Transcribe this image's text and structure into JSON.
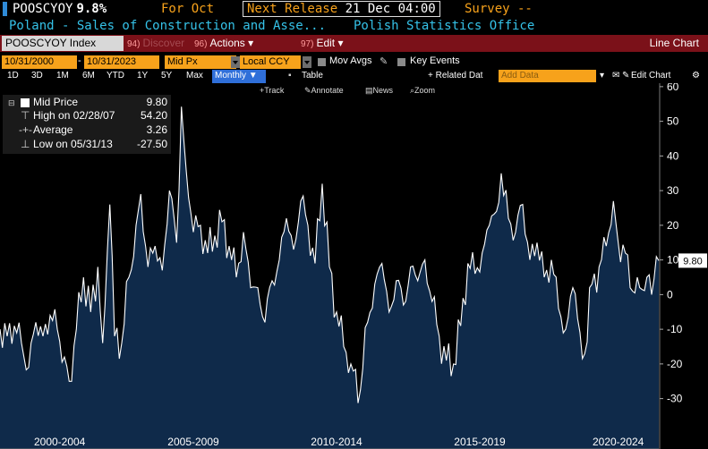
{
  "header": {
    "ticker": "POOSCYOY",
    "last_value": "9.8%",
    "for_label": "For Oct",
    "next_release_label": "Next Release",
    "next_release_date": "21 Dec 04:00",
    "survey_label": "Survey --",
    "description": "Poland - Sales of Construction and Asse...",
    "source": "Polish Statistics Office"
  },
  "toolbar": {
    "index_label": "POOSCYOY Index",
    "discover_num": "94)",
    "discover_label": "Discover",
    "actions_num": "96)",
    "actions_label": "Actions",
    "edit_num": "97)",
    "edit_label": "Edit",
    "chart_type_label": "Line Chart",
    "start_date": "10/31/2000",
    "end_date": "10/31/2023",
    "price_field": "Mid Px",
    "currency": "Local CCY",
    "mov_avgs_label": "Mov Avgs",
    "key_events_label": "Key Events",
    "ranges": [
      "1D",
      "3D",
      "1M",
      "6M",
      "YTD",
      "1Y",
      "5Y",
      "Max"
    ],
    "periodicity": "Monthly",
    "table_label": "Table",
    "related_data_label": "+ Related Dat",
    "add_data_placeholder": "Add Data",
    "edit_chart_label": "Edit Chart",
    "tools": [
      "Track",
      "Annotate",
      "News",
      "Zoom"
    ]
  },
  "legend": {
    "items": [
      {
        "name": "Mid Price",
        "value": "9.80"
      },
      {
        "name": "High on 02/28/07",
        "value": "54.20"
      },
      {
        "name": "Average",
        "value": "3.26"
      },
      {
        "name": "Low on 05/31/13",
        "value": "-27.50"
      }
    ]
  },
  "colors": {
    "accent_orange": "#f7a21b",
    "title_blue": "#35c2e8",
    "toolbar_red": "#7b1119",
    "area_fill": "#0f2a4a",
    "line": "#ffffff"
  },
  "chart_data": {
    "type": "area",
    "series": [
      {
        "name": "Mid Price"
      }
    ],
    "x_start": "2000-10",
    "x_end": "2023-10",
    "x_tick_labels": [
      "2000-2004",
      "2005-2009",
      "2010-2014",
      "2015-2019",
      "2020-2024"
    ],
    "y_ticks": [
      -30,
      -20,
      -10,
      0,
      10,
      20,
      30,
      40,
      50,
      60
    ],
    "ylim": [
      -35,
      61
    ],
    "last_value_label": "9.80",
    "grid": false,
    "y_axis_position": "right",
    "anchors": [
      [
        "2000-10",
        -10
      ],
      [
        "2001-01",
        -12
      ],
      [
        "2001-04",
        -9
      ],
      [
        "2001-07",
        -14
      ],
      [
        "2001-10",
        -21
      ],
      [
        "2002-01",
        -8
      ],
      [
        "2002-04",
        -12
      ],
      [
        "2002-07",
        -6
      ],
      [
        "2002-10",
        -10
      ],
      [
        "2003-01",
        -18
      ],
      [
        "2003-03",
        -25
      ],
      [
        "2003-06",
        -10
      ],
      [
        "2003-09",
        5
      ],
      [
        "2003-12",
        -5
      ],
      [
        "2004-03",
        8
      ],
      [
        "2004-05",
        -14
      ],
      [
        "2004-08",
        26
      ],
      [
        "2004-10",
        -12
      ],
      [
        "2005-01",
        -14
      ],
      [
        "2005-04",
        5
      ],
      [
        "2005-06",
        11
      ],
      [
        "2005-09",
        29
      ],
      [
        "2005-12",
        8
      ],
      [
        "2006-03",
        14
      ],
      [
        "2006-06",
        7
      ],
      [
        "2006-09",
        30
      ],
      [
        "2006-12",
        15
      ],
      [
        "2007-02",
        54.2
      ],
      [
        "2007-04",
        36
      ],
      [
        "2007-07",
        18
      ],
      [
        "2007-10",
        20
      ],
      [
        "2008-01",
        12
      ],
      [
        "2008-04",
        17
      ],
      [
        "2008-07",
        21
      ],
      [
        "2008-10",
        14
      ],
      [
        "2009-01",
        5
      ],
      [
        "2009-04",
        18
      ],
      [
        "2009-07",
        2
      ],
      [
        "2009-10",
        2
      ],
      [
        "2010-01",
        -8
      ],
      [
        "2010-04",
        4
      ],
      [
        "2010-07",
        10
      ],
      [
        "2010-10",
        22
      ],
      [
        "2011-01",
        13
      ],
      [
        "2011-04",
        27
      ],
      [
        "2011-07",
        20
      ],
      [
        "2011-10",
        9
      ],
      [
        "2012-01",
        32
      ],
      [
        "2012-04",
        8
      ],
      [
        "2012-07",
        -5
      ],
      [
        "2012-10",
        -15
      ],
      [
        "2013-01",
        -20
      ],
      [
        "2013-05",
        -27.5
      ],
      [
        "2013-08",
        -8
      ],
      [
        "2013-11",
        3
      ],
      [
        "2014-02",
        9
      ],
      [
        "2014-05",
        -5
      ],
      [
        "2014-08",
        4
      ],
      [
        "2014-11",
        -3
      ],
      [
        "2015-02",
        8
      ],
      [
        "2015-05",
        4
      ],
      [
        "2015-08",
        10
      ],
      [
        "2015-11",
        -2
      ],
      [
        "2016-02",
        -12
      ],
      [
        "2016-05",
        -19
      ],
      [
        "2016-08",
        -20
      ],
      [
        "2016-11",
        -9
      ],
      [
        "2017-02",
        9
      ],
      [
        "2017-05",
        6
      ],
      [
        "2017-08",
        12
      ],
      [
        "2017-11",
        20
      ],
      [
        "2018-02",
        24
      ],
      [
        "2018-04",
        35
      ],
      [
        "2018-07",
        22
      ],
      [
        "2018-10",
        18
      ],
      [
        "2019-01",
        26
      ],
      [
        "2019-04",
        10
      ],
      [
        "2019-07",
        15
      ],
      [
        "2019-10",
        5
      ],
      [
        "2020-01",
        10
      ],
      [
        "2020-04",
        -4
      ],
      [
        "2020-07",
        -10
      ],
      [
        "2020-10",
        2
      ],
      [
        "2021-01",
        -11
      ],
      [
        "2021-03",
        -17
      ],
      [
        "2021-06",
        3
      ],
      [
        "2021-09",
        8
      ],
      [
        "2021-12",
        14
      ],
      [
        "2022-03",
        27
      ],
      [
        "2022-05",
        15
      ],
      [
        "2022-08",
        12
      ],
      [
        "2022-11",
        1
      ],
      [
        "2023-02",
        2
      ],
      [
        "2023-05",
        5
      ],
      [
        "2023-07",
        0
      ],
      [
        "2023-09",
        11
      ],
      [
        "2023-10",
        9.8
      ]
    ]
  }
}
